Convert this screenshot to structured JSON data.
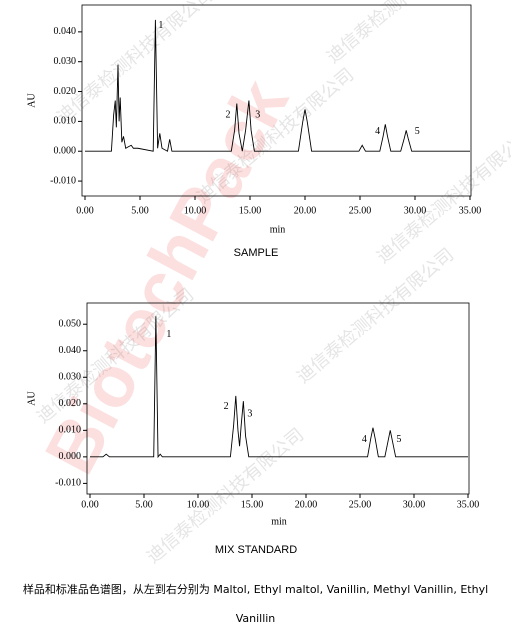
{
  "chart_data": [
    {
      "type": "line",
      "title": "SAMPLE",
      "xlabel": "min",
      "ylabel": "AU",
      "color": "#000000",
      "x": [
        0,
        2.4,
        2.6,
        2.75,
        2.85,
        3.0,
        3.1,
        3.2,
        3.35,
        3.5,
        3.7,
        4.2,
        4.4,
        4.8,
        6.2,
        6.4,
        6.6,
        6.8,
        7.0,
        7.5,
        7.7,
        7.9,
        13.3,
        13.6,
        13.8,
        14.0,
        14.3,
        14.6,
        14.9,
        15.1,
        15.4,
        19.4,
        19.8,
        20.0,
        20.2,
        20.6,
        24.9,
        25.2,
        25.5,
        26.8,
        27.1,
        27.3,
        27.5,
        27.8,
        28.7,
        29.0,
        29.2,
        29.4,
        29.7,
        35
      ],
      "values": [
        0,
        0,
        0.012,
        0.017,
        0.008,
        0.029,
        0.01,
        0.018,
        0.003,
        0.005,
        0.001,
        0.002,
        0.001,
        0.001,
        0,
        0.044,
        0.001,
        0.006,
        0.001,
        0,
        0.004,
        0,
        0,
        0.007,
        0.016,
        0.006,
        0,
        0.007,
        0.017,
        0.007,
        0,
        0,
        0.01,
        0.014,
        0.01,
        0,
        0,
        0.002,
        0,
        0,
        0.005,
        0.009,
        0.005,
        0,
        0,
        0.004,
        0.007,
        0.004,
        0,
        0
      ],
      "xlim": [
        0,
        35
      ],
      "ylim": [
        -0.015,
        0.049
      ],
      "xticks": [
        {
          "value": 0,
          "label": "0.00"
        },
        {
          "value": 5,
          "label": "5.00"
        },
        {
          "value": 10,
          "label": "10.00"
        },
        {
          "value": 15,
          "label": "15.00"
        },
        {
          "value": 20,
          "label": "20.00"
        },
        {
          "value": 25,
          "label": "25.00"
        },
        {
          "value": 30,
          "label": "30.00"
        },
        {
          "value": 35,
          "label": "35.00"
        }
      ],
      "yticks": [
        {
          "value": -0.01,
          "label": "-0.010"
        },
        {
          "value": 0,
          "label": "0.000"
        },
        {
          "value": 0.01,
          "label": "0.010"
        },
        {
          "value": 0.02,
          "label": "0.020"
        },
        {
          "value": 0.03,
          "label": "0.030"
        },
        {
          "value": 0.04,
          "label": "0.040"
        }
      ],
      "annotations": [
        {
          "text": "1",
          "x": 6.9,
          "y": 0.042
        },
        {
          "text": "2",
          "x": 13.0,
          "y": 0.012
        },
        {
          "text": "3",
          "x": 15.7,
          "y": 0.012
        },
        {
          "text": "4",
          "x": 26.6,
          "y": 0.0065
        },
        {
          "text": "5",
          "x": 30.2,
          "y": 0.0065
        }
      ]
    },
    {
      "type": "line",
      "title": "MIX STANDARD",
      "xlabel": "min",
      "ylabel": "AU",
      "color": "#000000",
      "x": [
        0,
        1.2,
        1.5,
        1.8,
        5.9,
        6.1,
        6.3,
        6.5,
        6.7,
        13.0,
        13.3,
        13.5,
        13.7,
        13.85,
        14.0,
        14.2,
        14.4,
        14.7,
        25.7,
        26.0,
        26.2,
        26.4,
        26.7,
        27.3,
        27.6,
        27.8,
        28.0,
        28.3,
        35
      ],
      "values": [
        0,
        0,
        0.001,
        0,
        0,
        0.053,
        0,
        0.001,
        0,
        0,
        0.012,
        0.023,
        0.01,
        0.004,
        0.012,
        0.021,
        0.008,
        0,
        0,
        0.007,
        0.011,
        0.007,
        0,
        0,
        0.006,
        0.01,
        0.006,
        0,
        0
      ],
      "xlim": [
        0,
        35
      ],
      "ylim": [
        -0.014,
        0.058
      ],
      "xticks": [
        {
          "value": 0,
          "label": "0.00"
        },
        {
          "value": 5,
          "label": "5.00"
        },
        {
          "value": 10,
          "label": "10.00"
        },
        {
          "value": 15,
          "label": "15.00"
        },
        {
          "value": 20,
          "label": "20.00"
        },
        {
          "value": 25,
          "label": "25.00"
        },
        {
          "value": 30,
          "label": "30.00"
        },
        {
          "value": 35,
          "label": "35.00"
        }
      ],
      "yticks": [
        {
          "value": -0.01,
          "label": "-0.010"
        },
        {
          "value": 0,
          "label": "0.000"
        },
        {
          "value": 0.01,
          "label": "0.010"
        },
        {
          "value": 0.02,
          "label": "0.020"
        },
        {
          "value": 0.03,
          "label": "0.030"
        },
        {
          "value": 0.04,
          "label": "0.040"
        },
        {
          "value": 0.05,
          "label": "0.050"
        }
      ],
      "annotations": [
        {
          "text": "1",
          "x": 7.3,
          "y": 0.046
        },
        {
          "text": "2",
          "x": 12.6,
          "y": 0.019
        },
        {
          "text": "3",
          "x": 14.8,
          "y": 0.016
        },
        {
          "text": "4",
          "x": 25.4,
          "y": 0.0065
        },
        {
          "text": "5",
          "x": 28.6,
          "y": 0.0065
        }
      ]
    }
  ],
  "caption": "样品和标准品色谱图，从左到右分别为 Maltol,  Ethyl maltol, Vanillin, Methyl Vanillin, Ethyl Vanillin",
  "watermark": "迪信泰检测科技有限公司",
  "logo": "BiotechPack"
}
